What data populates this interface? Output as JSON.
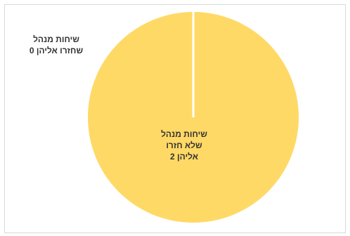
{
  "chart_data": {
    "type": "pie",
    "slices": [
      {
        "label_lines": [
          "שיחות מנהל",
          "שחזרו אליהן 0"
        ],
        "value": 0,
        "color": "#ffd966"
      },
      {
        "label_lines": [
          "שיחות מנהל",
          "שלא חזרו",
          "אליהן  2"
        ],
        "value": 2,
        "color": "#ffd966"
      }
    ],
    "grid": false,
    "legend": "none"
  },
  "colors": {
    "slice": "#ffd966",
    "separator": "#ffffff",
    "border": "#d9d9d9"
  }
}
